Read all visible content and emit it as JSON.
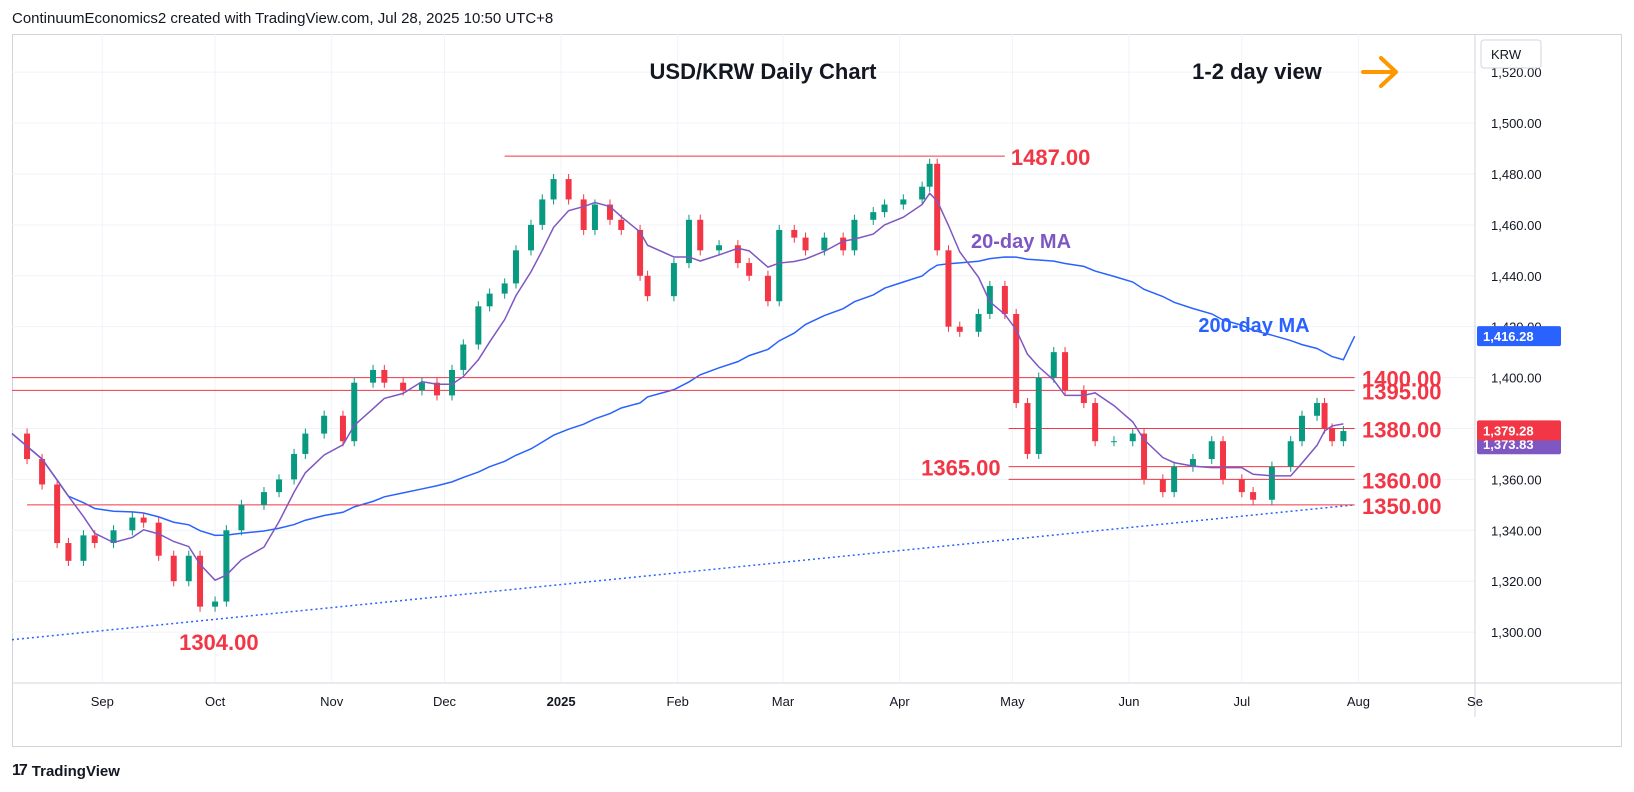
{
  "header": {
    "attribution": "ContinuumEconomics2 created with TradingView.com, Jul 28, 2025 10:50 UTC+8"
  },
  "footer": {
    "brand": "TradingView",
    "logo_icon": "tradingview-logo-icon"
  },
  "colors": {
    "up": "#089981",
    "down": "#f23645",
    "level": "#f23645",
    "ma20": "#7e57c2",
    "ma200": "#2962ff",
    "trend": "#2962ff",
    "arrow": "#ff9800",
    "label_text": "#f23645"
  },
  "chart_data": {
    "type": "candlestick",
    "title": "USD/KRW Daily Chart",
    "view_label": "1-2 day view",
    "view_icon": "right-arrow-icon",
    "currency": "KRW",
    "ylim": [
      1280,
      1535
    ],
    "y_ticks": [
      1300,
      1320,
      1340,
      1360,
      1380,
      1400,
      1420,
      1440,
      1460,
      1480,
      1500,
      1520
    ],
    "y_tick_labels": [
      "1,300.00",
      "1,320.00",
      "1,340.00",
      "1,360.00",
      "1,380.00",
      "1,400.00",
      "1,420.00",
      "1,440.00",
      "1,460.00",
      "1,480.00",
      "1,500.00",
      "1,520.00"
    ],
    "x_ticks": [
      {
        "label": "Sep",
        "date": "2024-09-01",
        "bold": false
      },
      {
        "label": "Oct",
        "date": "2024-10-01",
        "bold": false
      },
      {
        "label": "Nov",
        "date": "2024-11-01",
        "bold": false
      },
      {
        "label": "Dec",
        "date": "2024-12-01",
        "bold": false
      },
      {
        "label": "2025",
        "date": "2025-01-01",
        "bold": true
      },
      {
        "label": "Feb",
        "date": "2025-02-01",
        "bold": false
      },
      {
        "label": "Mar",
        "date": "2025-03-01",
        "bold": false
      },
      {
        "label": "Apr",
        "date": "2025-04-01",
        "bold": false
      },
      {
        "label": "May",
        "date": "2025-05-01",
        "bold": false
      },
      {
        "label": "Jun",
        "date": "2025-06-01",
        "bold": false
      },
      {
        "label": "Jul",
        "date": "2025-07-01",
        "bold": false
      },
      {
        "label": "Aug",
        "date": "2025-08-01",
        "bold": false
      },
      {
        "label": "Se",
        "date": "2025-09-01",
        "bold": false
      }
    ],
    "xlim": [
      "2024-08-08",
      "2025-09-01"
    ],
    "closes": [
      [
        "2024-08-08",
        1378
      ],
      [
        "2024-08-12",
        1368
      ],
      [
        "2024-08-16",
        1358
      ],
      [
        "2024-08-20",
        1335
      ],
      [
        "2024-08-23",
        1328
      ],
      [
        "2024-08-27",
        1338
      ],
      [
        "2024-08-30",
        1335
      ],
      [
        "2024-09-04",
        1340
      ],
      [
        "2024-09-09",
        1345
      ],
      [
        "2024-09-12",
        1343
      ],
      [
        "2024-09-16",
        1330
      ],
      [
        "2024-09-20",
        1320
      ],
      [
        "2024-09-24",
        1330
      ],
      [
        "2024-09-27",
        1310
      ],
      [
        "2024-10-01",
        1312
      ],
      [
        "2024-10-04",
        1340
      ],
      [
        "2024-10-08",
        1350
      ],
      [
        "2024-10-14",
        1355
      ],
      [
        "2024-10-18",
        1360
      ],
      [
        "2024-10-22",
        1370
      ],
      [
        "2024-10-25",
        1378
      ],
      [
        "2024-10-30",
        1385
      ],
      [
        "2024-11-04",
        1375
      ],
      [
        "2024-11-07",
        1398
      ],
      [
        "2024-11-12",
        1403
      ],
      [
        "2024-11-15",
        1398
      ],
      [
        "2024-11-20",
        1395
      ],
      [
        "2024-11-25",
        1398
      ],
      [
        "2024-11-29",
        1393
      ],
      [
        "2024-12-03",
        1403
      ],
      [
        "2024-12-06",
        1413
      ],
      [
        "2024-12-10",
        1428
      ],
      [
        "2024-12-13",
        1433
      ],
      [
        "2024-12-17",
        1437
      ],
      [
        "2024-12-20",
        1450
      ],
      [
        "2024-12-24",
        1460
      ],
      [
        "2024-12-27",
        1470
      ],
      [
        "2024-12-30",
        1478
      ],
      [
        "2025-01-03",
        1470
      ],
      [
        "2025-01-07",
        1458
      ],
      [
        "2025-01-10",
        1468
      ],
      [
        "2025-01-14",
        1462
      ],
      [
        "2025-01-17",
        1458
      ],
      [
        "2025-01-22",
        1440
      ],
      [
        "2025-01-24",
        1432
      ],
      [
        "2025-01-31",
        1445
      ],
      [
        "2025-02-04",
        1462
      ],
      [
        "2025-02-07",
        1450
      ],
      [
        "2025-02-12",
        1452
      ],
      [
        "2025-02-17",
        1445
      ],
      [
        "2025-02-20",
        1440
      ],
      [
        "2025-02-25",
        1430
      ],
      [
        "2025-02-28",
        1458
      ],
      [
        "2025-03-04",
        1455
      ],
      [
        "2025-03-07",
        1450
      ],
      [
        "2025-03-12",
        1455
      ],
      [
        "2025-03-17",
        1450
      ],
      [
        "2025-03-20",
        1462
      ],
      [
        "2025-03-25",
        1465
      ],
      [
        "2025-03-28",
        1468
      ],
      [
        "2025-04-02",
        1470
      ],
      [
        "2025-04-07",
        1475
      ],
      [
        "2025-04-09",
        1484
      ],
      [
        "2025-04-11",
        1450
      ],
      [
        "2025-04-14",
        1420
      ],
      [
        "2025-04-17",
        1418
      ],
      [
        "2025-04-22",
        1425
      ],
      [
        "2025-04-25",
        1436
      ],
      [
        "2025-04-29",
        1425
      ],
      [
        "2025-05-02",
        1390
      ],
      [
        "2025-05-05",
        1370
      ],
      [
        "2025-05-08",
        1400
      ],
      [
        "2025-05-12",
        1410
      ],
      [
        "2025-05-15",
        1395
      ],
      [
        "2025-05-20",
        1390
      ],
      [
        "2025-05-23",
        1375
      ],
      [
        "2025-05-28",
        1375
      ],
      [
        "2025-06-02",
        1378
      ],
      [
        "2025-06-05",
        1360
      ],
      [
        "2025-06-10",
        1355
      ],
      [
        "2025-06-13",
        1365
      ],
      [
        "2025-06-18",
        1368
      ],
      [
        "2025-06-23",
        1375
      ],
      [
        "2025-06-26",
        1360
      ],
      [
        "2025-07-01",
        1355
      ],
      [
        "2025-07-04",
        1352
      ],
      [
        "2025-07-09",
        1365
      ],
      [
        "2025-07-14",
        1375
      ],
      [
        "2025-07-17",
        1385
      ],
      [
        "2025-07-21",
        1390
      ],
      [
        "2025-07-23",
        1380
      ],
      [
        "2025-07-25",
        1375
      ],
      [
        "2025-07-28",
        1379
      ]
    ],
    "last_price_label": "1,379.28",
    "ma200_label": "1,416.28",
    "ma20_label": "1,373.83",
    "ma20_name": "20-day MA",
    "ma200_name": "200-day MA",
    "ma200_end_value": 1416.28,
    "levels": [
      {
        "value": 1487,
        "label": "1487.00",
        "from": "2024-12-17",
        "to": "2025-04-29",
        "label_side": "right"
      },
      {
        "value": 1400,
        "label": "1400.00",
        "from": "2024-08-08",
        "to": "2025-07-31",
        "label_side": "right"
      },
      {
        "value": 1395,
        "label": "1395.00",
        "from": "2024-08-08",
        "to": "2025-07-31",
        "label_side": "right"
      },
      {
        "value": 1380,
        "label": "1380.00",
        "from": "2025-04-30",
        "to": "2025-07-31",
        "label_side": "right"
      },
      {
        "value": 1365,
        "label": "1365.00",
        "from": "2025-04-30",
        "to": "2025-07-31",
        "label_side": "left"
      },
      {
        "value": 1360,
        "label": "1360.00",
        "from": "2025-04-30",
        "to": "2025-07-31",
        "label_side": "right"
      },
      {
        "value": 1350,
        "label": "1350.00",
        "from": "2024-08-12",
        "to": "2025-07-31",
        "label_side": "right"
      }
    ],
    "low_label": {
      "value": 1304,
      "label": "1304.00",
      "date": "2024-10-02"
    },
    "trendline": {
      "start": [
        "2024-08-08",
        1297
      ],
      "end": [
        "2025-07-31",
        1350
      ]
    }
  }
}
